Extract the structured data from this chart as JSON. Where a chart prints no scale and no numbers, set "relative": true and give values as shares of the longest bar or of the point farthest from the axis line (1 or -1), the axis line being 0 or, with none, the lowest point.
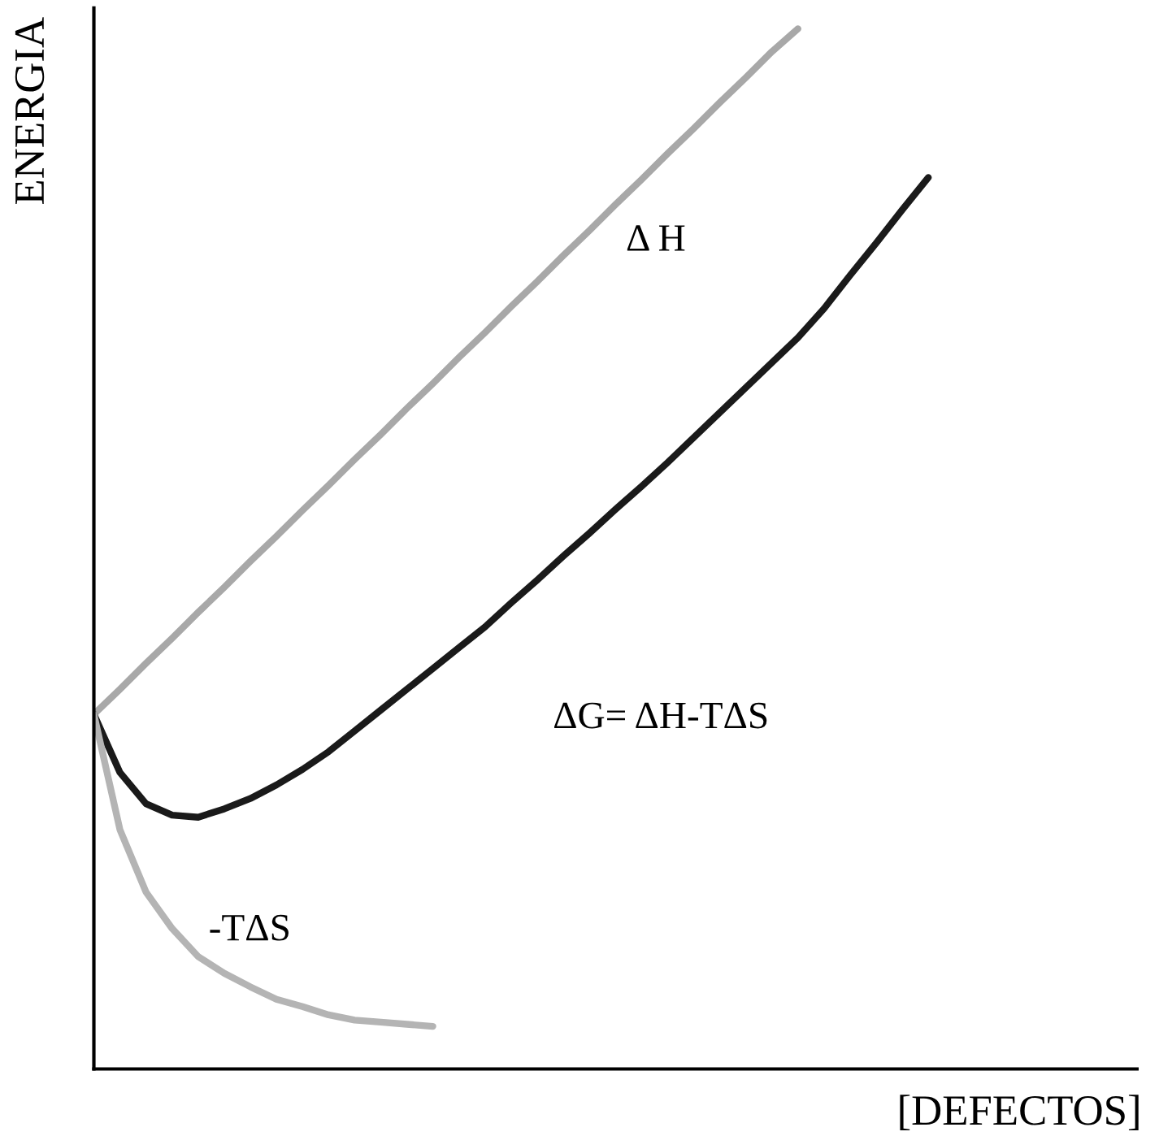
{
  "chart_data": {
    "type": "line",
    "relative": true,
    "xlabel": "[DEFECTOS]",
    "ylabel": "ENERGIA",
    "marker": "none",
    "line_style": "solid",
    "categories": [
      null,
      null,
      null,
      null,
      null,
      null,
      null,
      null,
      null,
      null,
      null,
      null,
      null,
      null,
      null,
      null,
      null,
      null,
      null,
      null,
      null,
      null,
      null,
      null,
      null,
      null,
      null,
      null,
      null,
      null,
      null,
      null,
      null,
      null,
      null,
      null,
      null,
      null,
      null,
      null,
      null
    ],
    "series": [
      {
        "name": "Δ H",
        "color": "#a8a8a8",
        "values": [
          0.341,
          0.365,
          0.39,
          0.414,
          0.439,
          0.463,
          0.488,
          0.512,
          0.537,
          0.561,
          0.586,
          0.61,
          0.635,
          0.659,
          0.684,
          0.708,
          0.733,
          0.757,
          0.782,
          0.806,
          0.831,
          0.855,
          0.88,
          0.904,
          0.929,
          0.953,
          0.978,
          1.0,
          null,
          null,
          null,
          null,
          null,
          null,
          null,
          null,
          null,
          null,
          null,
          null,
          null
        ]
      },
      {
        "name": "ΔG= ΔH-TΔS",
        "color": "#1a1a1a",
        "values": [
          0.341,
          0.285,
          0.255,
          0.244,
          0.242,
          0.25,
          0.26,
          0.273,
          0.288,
          0.305,
          0.325,
          0.345,
          0.365,
          0.385,
          0.405,
          0.425,
          0.448,
          0.47,
          0.493,
          0.515,
          0.538,
          0.56,
          0.583,
          0.607,
          0.631,
          0.655,
          0.679,
          0.703,
          0.731,
          0.763,
          0.794,
          0.826,
          0.857,
          null,
          null,
          null,
          null,
          null,
          null,
          null,
          null
        ]
      },
      {
        "name": "-TΔS",
        "color": "#b4b4b4",
        "values": [
          0.341,
          0.23,
          0.17,
          0.135,
          0.108,
          0.092,
          0.079,
          0.067,
          0.06,
          0.052,
          0.047,
          0.045,
          0.043,
          0.041,
          null,
          null,
          null,
          null,
          null,
          null,
          null,
          null,
          null,
          null,
          null,
          null,
          null,
          null,
          null,
          null,
          null,
          null,
          null,
          null,
          null,
          null,
          null,
          null,
          null,
          null,
          null
        ]
      }
    ]
  }
}
